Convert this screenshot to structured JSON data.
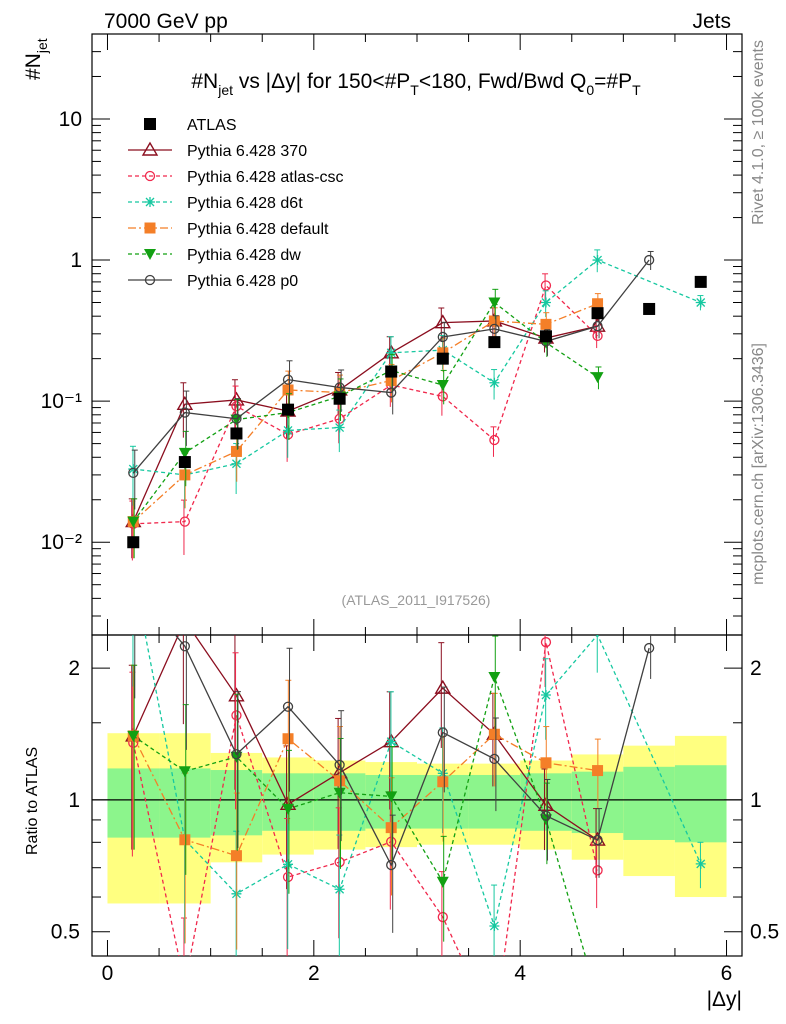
{
  "header": {
    "left": "7000 GeV pp",
    "right": "Jets"
  },
  "side_labels": {
    "rivet": "Rivet 4.1.0, ≥ 100k events",
    "mcplots": "mcplots.cern.ch [arXiv:1306.3436]"
  },
  "watermark": "(ATLAS_2011_I917526)",
  "chart_data": {
    "type": "scatter",
    "title": "#N_jet vs |Δy| for 150<#P_T<180, Fwd/Bwd Q_0=#P_T",
    "title_parts": {
      "a": "#N",
      "a_sub": "jet",
      "b": " vs |Δy| for 150<#P",
      "b_sub": "T",
      "c": "<180, Fwd/Bwd Q",
      "c_sub": "0",
      "d": "=#P",
      "d_sub": "T"
    },
    "ylabel": "#N_jet",
    "ylabel_parts": {
      "main": "#N",
      "sub": "jet"
    },
    "ratio_ylabel": "Ratio to ATLAS",
    "xlabel": "|Δy|",
    "xlim": [
      -0.15,
      6.15
    ],
    "ylim": [
      0.0022,
      40
    ],
    "ylog": true,
    "ratio_ylim": [
      0.44,
      2.38
    ],
    "x_ticks": [
      0,
      2,
      4,
      6
    ],
    "x_tick_labels": [
      "0",
      "2",
      "4",
      "6"
    ],
    "y_tick_labels": [
      "10",
      "1",
      "10⁻¹",
      "10⁻²"
    ],
    "ratio_tick_labels": [
      "2",
      "1",
      "0.5"
    ],
    "x": [
      0.25,
      0.75,
      1.25,
      1.75,
      2.25,
      2.75,
      3.25,
      3.75,
      4.25,
      4.75,
      5.25,
      5.75
    ],
    "data": {
      "name": "ATLAS",
      "values": [
        0.01,
        0.037,
        0.059,
        0.087,
        0.104,
        0.162,
        0.2,
        0.262,
        0.288,
        0.42,
        0.45,
        0.7
      ],
      "band_inner": [
        0.18,
        0.18,
        0.17,
        0.15,
        0.15,
        0.14,
        0.14,
        0.14,
        0.15,
        0.16,
        0.19,
        0.2
      ],
      "band_outer": [
        0.42,
        0.42,
        0.28,
        0.25,
        0.23,
        0.22,
        0.21,
        0.21,
        0.23,
        0.27,
        0.33,
        0.4
      ]
    },
    "series": [
      {
        "name": "Pythia 6.428 370",
        "color": "#8b0e1f",
        "dash": "",
        "marker": "triangle-open",
        "values": [
          0.014,
          0.095,
          0.102,
          0.085,
          0.12,
          0.22,
          0.36,
          0.37,
          0.28,
          0.34,
          null,
          null
        ]
      },
      {
        "name": "Pythia 6.428 atlas-csc",
        "color": "#f0284c",
        "dash": "4,3",
        "marker": "circle-open",
        "values": [
          0.0135,
          0.014,
          0.092,
          0.058,
          0.075,
          0.13,
          0.108,
          0.053,
          0.66,
          0.29,
          null,
          null
        ]
      },
      {
        "name": "Pythia 6.428 d6t",
        "color": "#16c8a0",
        "dash": "4,3",
        "marker": "star",
        "values": [
          0.033,
          0.03,
          0.036,
          0.062,
          0.065,
          0.22,
          0.23,
          0.135,
          0.5,
          1.0,
          null,
          0.5
        ]
      },
      {
        "name": "Pythia 6.428 default",
        "color": "#f47f28",
        "dash": "8,3,2,3",
        "marker": "square",
        "values": [
          0.014,
          0.03,
          0.044,
          0.12,
          0.115,
          0.14,
          0.22,
          0.37,
          0.35,
          0.49,
          null,
          null
        ]
      },
      {
        "name": "Pythia 6.428 dw",
        "color": "#12a012",
        "dash": "4,3",
        "marker": "triangle-down",
        "values": [
          0.014,
          0.043,
          0.074,
          0.083,
          0.108,
          0.165,
          0.13,
          0.5,
          0.26,
          0.148,
          null,
          null
        ]
      },
      {
        "name": "Pythia 6.428 p0",
        "color": "#404040",
        "dash": "",
        "marker": "circle-open",
        "values": [
          0.031,
          0.083,
          0.075,
          0.142,
          0.125,
          0.115,
          0.285,
          0.325,
          0.265,
          0.34,
          1.0,
          null
        ]
      }
    ]
  }
}
